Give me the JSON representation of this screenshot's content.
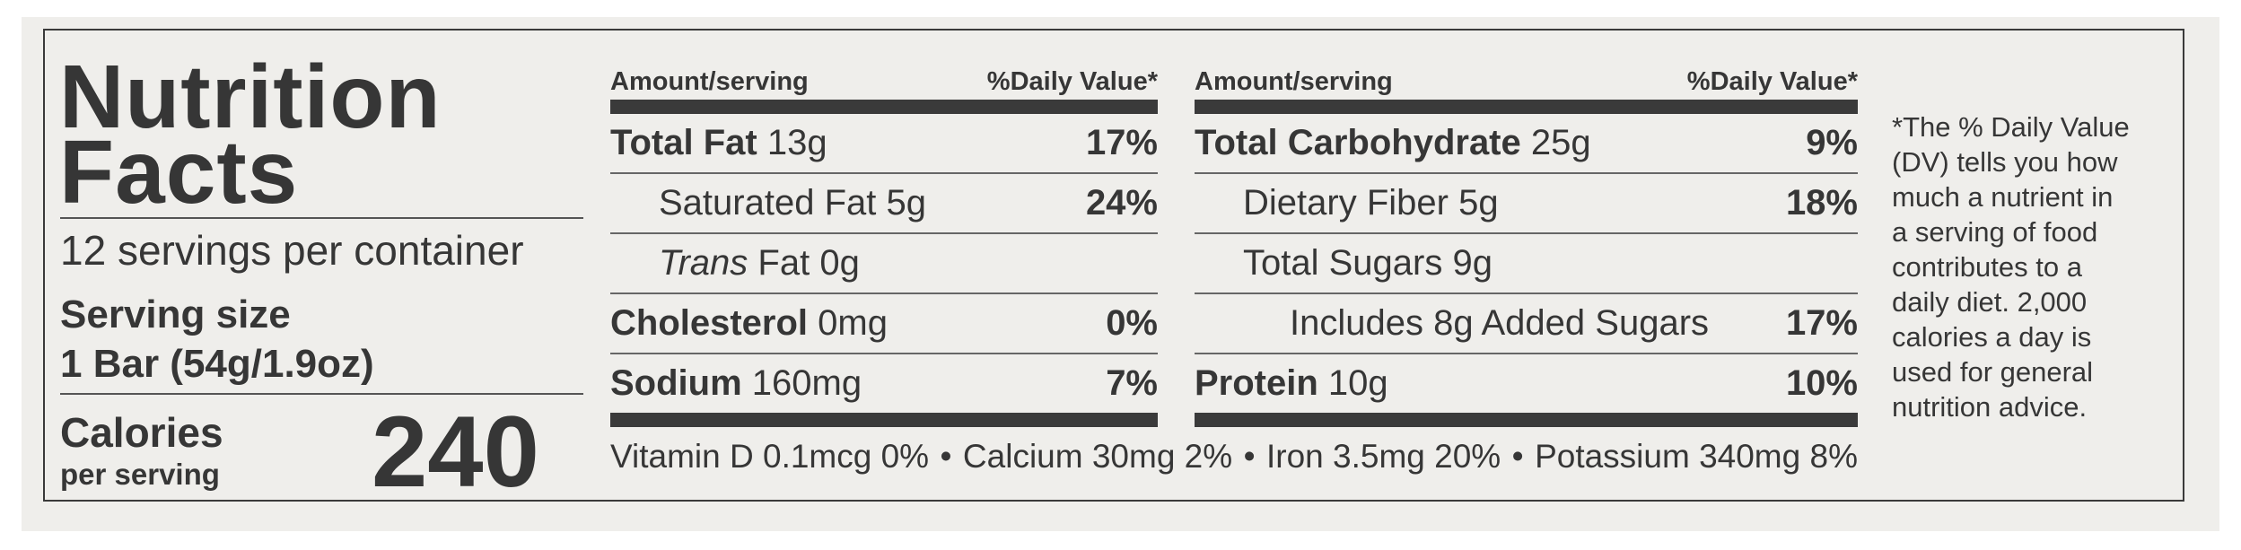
{
  "title_line1": "Nutrition",
  "title_line2": "Facts",
  "servings_per_container": "12 servings per container",
  "serving_size_label": "Serving size",
  "serving_size_value": "1 Bar (54g/1.9oz)",
  "calories_label": "Calories",
  "calories_sublabel": "per serving",
  "calories_value": "240",
  "header": {
    "amount": "Amount/serving",
    "dv": "%Daily Value*"
  },
  "left_nutrients": [
    {
      "name": "Total Fat",
      "amount": "13g",
      "dv": "17%"
    },
    {
      "name": "Saturated Fat",
      "amount": "5g",
      "dv": "24%"
    },
    {
      "name_italic": "Trans",
      "name": "Fat",
      "amount": "0g",
      "dv": ""
    },
    {
      "name": "Cholesterol",
      "amount": "0mg",
      "dv": "0%"
    },
    {
      "name": "Sodium",
      "amount": "160mg",
      "dv": "7%"
    }
  ],
  "right_nutrients": [
    {
      "name": "Total Carbohydrate",
      "amount": "25g",
      "dv": "9%"
    },
    {
      "name": "Dietary Fiber",
      "amount": "5g",
      "dv": "18%"
    },
    {
      "name": "Total Sugars",
      "amount": "9g",
      "dv": ""
    },
    {
      "name": "Includes 8g Added Sugars",
      "amount": "",
      "dv": "17%"
    },
    {
      "name": "Protein",
      "amount": "10g",
      "dv": "10%"
    }
  ],
  "vitamins": [
    "Vitamin D 0.1mcg 0%",
    "Calcium 30mg 2%",
    "Iron 3.5mg 20%",
    "Potassium 340mg 8%"
  ],
  "bullet": "•",
  "footnote_lines": [
    "*The % Daily Value",
    "(DV) tells you how",
    "much a nutrient in",
    "a serving of food",
    "contributes to a",
    "daily diet. 2,000",
    "calories a day is",
    "used for general",
    "nutrition advice."
  ]
}
